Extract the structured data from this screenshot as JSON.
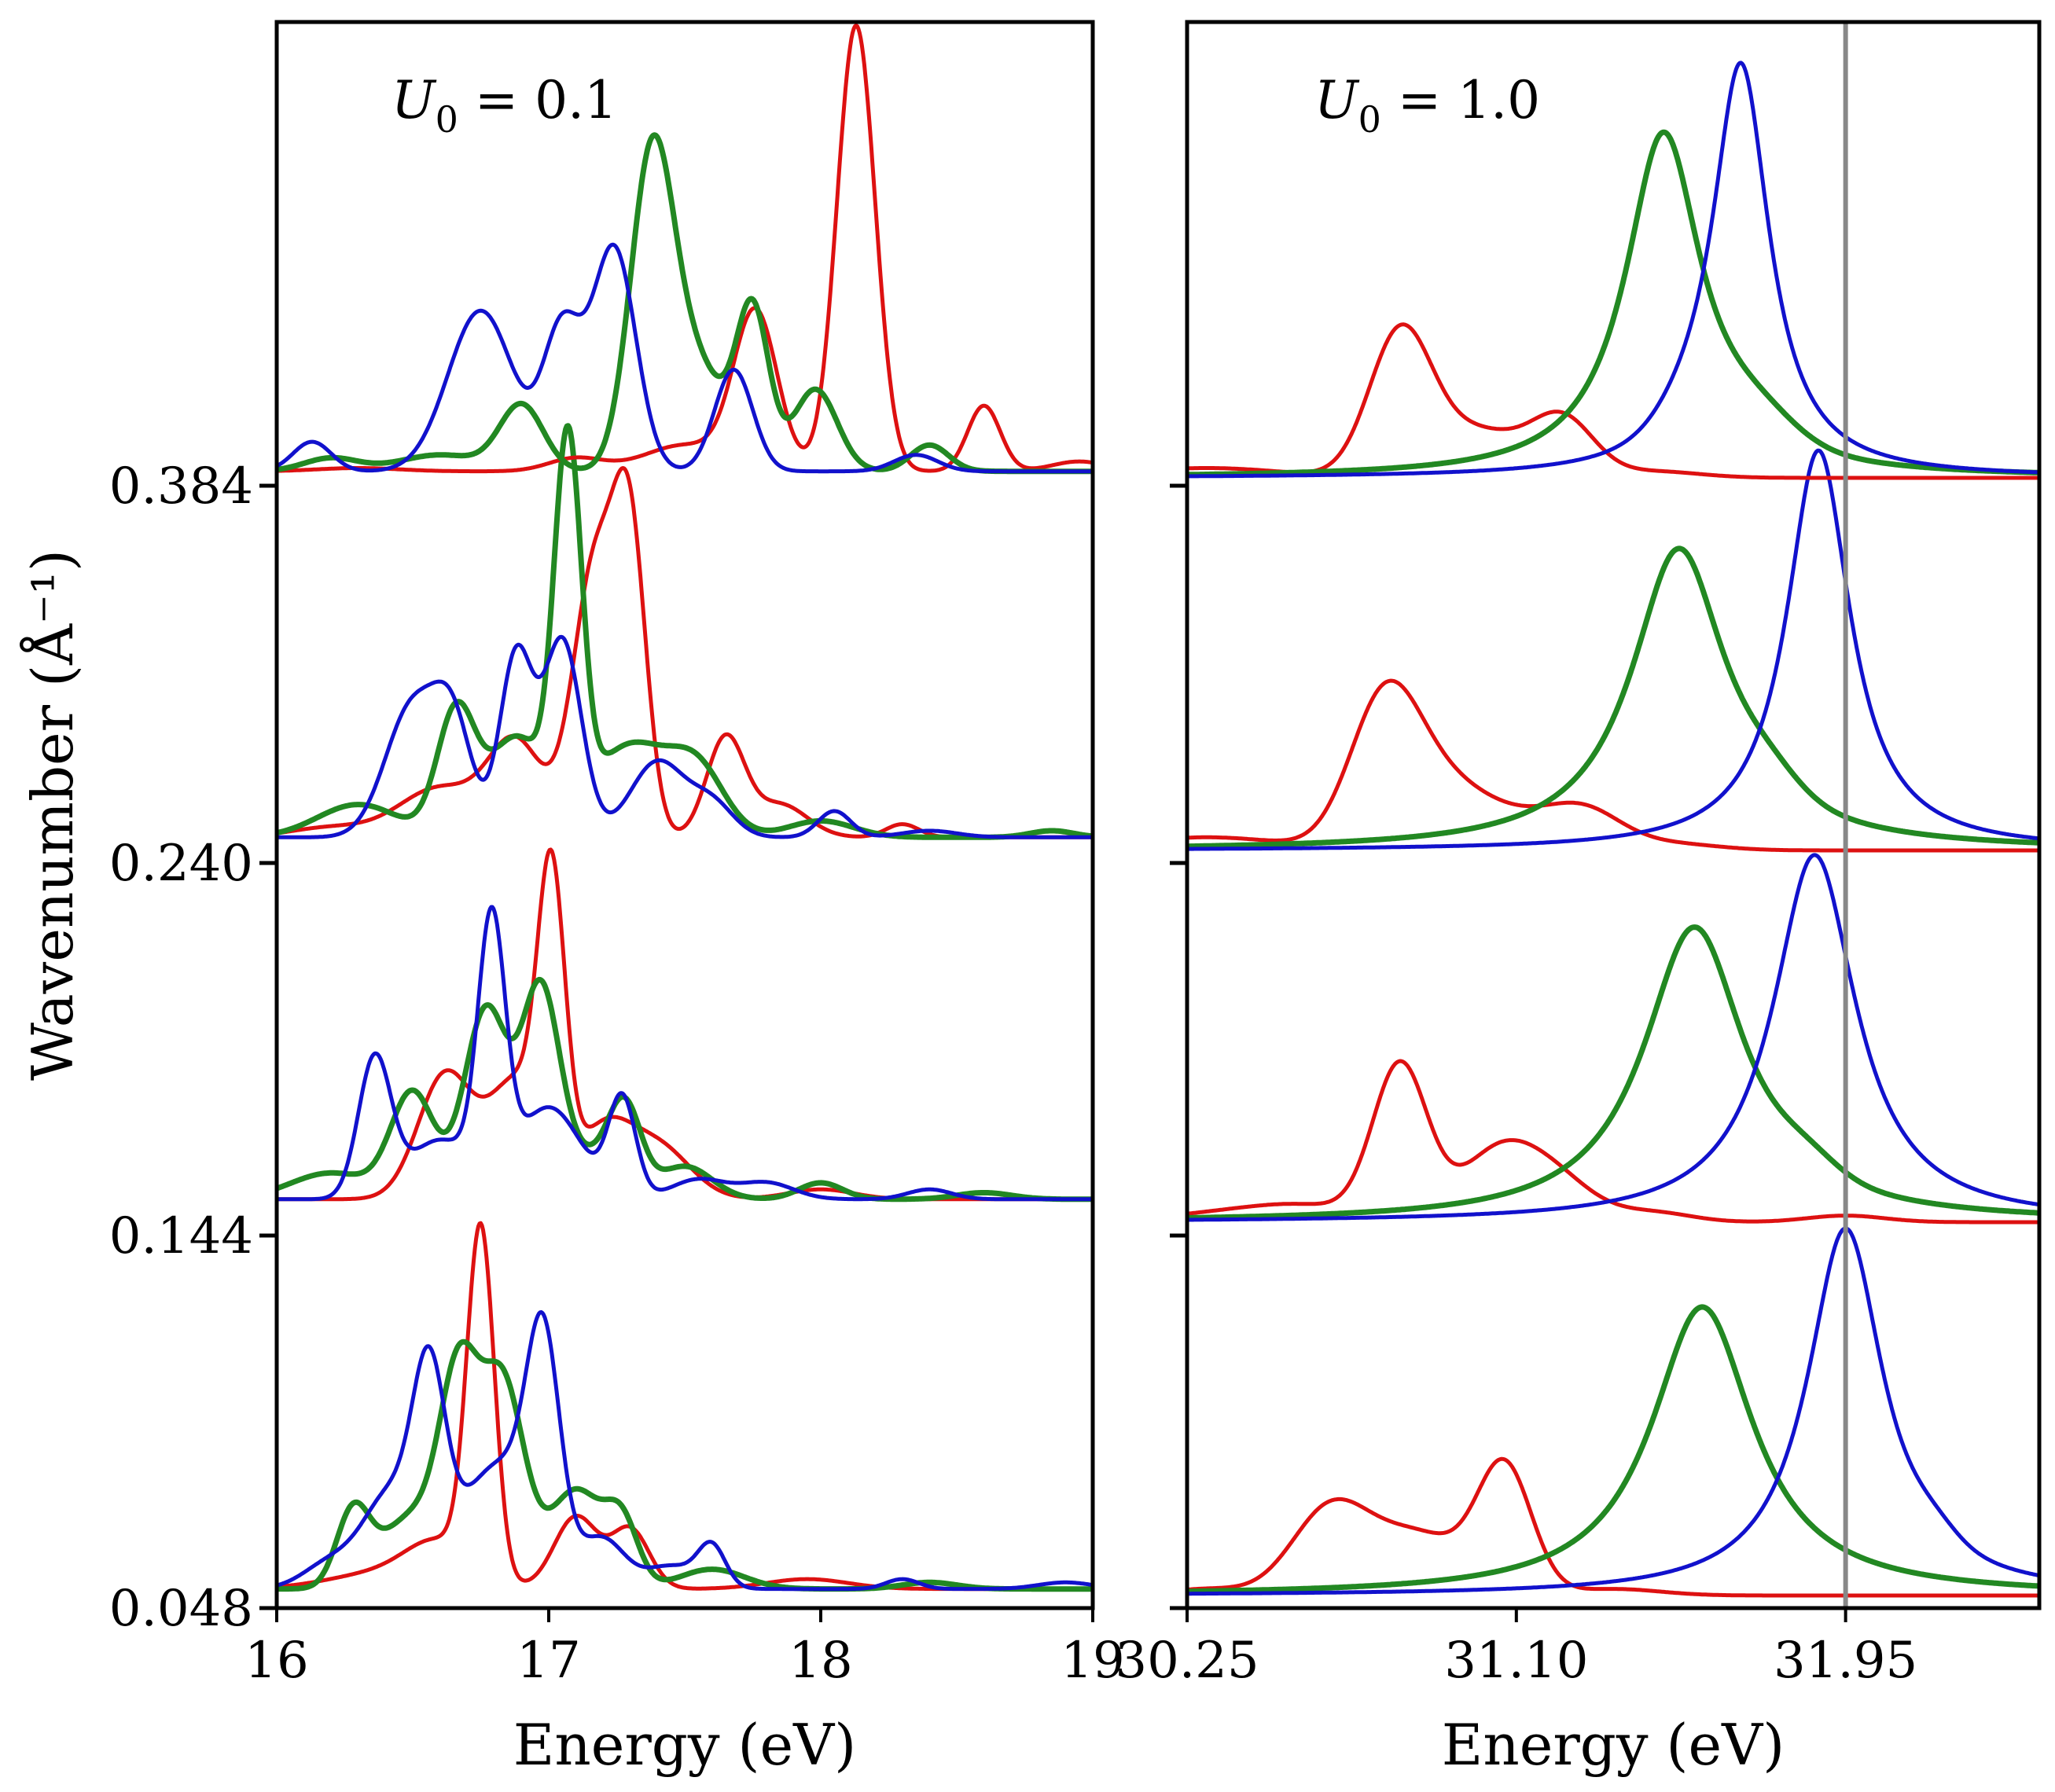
{
  "chart_data": [
    {
      "type": "line",
      "panel_label": "U0 = 0.1",
      "label_parts": {
        "symbol": "U",
        "subscript": "0",
        "rest": " = 0.1"
      },
      "xlabel": "Energy (eV)",
      "ylabel": "Wavenumber  (Å⁻¹)",
      "xlim": [
        16,
        19
      ],
      "xticks": [
        16,
        17,
        18,
        19
      ],
      "xtick_labels": [
        "16",
        "17",
        "18",
        "19"
      ],
      "yticks": [
        "0.048",
        "0.144",
        "0.240",
        "0.384"
      ],
      "offset_units": 1.0,
      "colors": {
        "red": "#dd1111",
        "green": "#228822",
        "blue": "#1111cc"
      },
      "rows": [
        {
          "wavenumber": "0.048",
          "baseline": 0.02,
          "series": [
            {
              "name": "red",
              "peaks": [
                [
                  16.4,
                  0.05,
                  0.2
                ],
                [
                  16.6,
                  0.12,
                  0.12
                ],
                [
                  16.75,
                  1.05,
                  0.05
                ],
                [
                  17.1,
                  0.22,
                  0.08
                ],
                [
                  17.3,
                  0.18,
                  0.07
                ],
                [
                  17.95,
                  0.03,
                  0.15
                ]
              ]
            },
            {
              "name": "green",
              "peaks": [
                [
                  16.28,
                  0.22,
                  0.06
                ],
                [
                  16.5,
                  0.22,
                  0.12
                ],
                [
                  16.67,
                  0.58,
                  0.07
                ],
                [
                  16.83,
                  0.62,
                  0.08
                ],
                [
                  17.1,
                  0.3,
                  0.1
                ],
                [
                  17.27,
                  0.18,
                  0.06
                ],
                [
                  17.6,
                  0.06,
                  0.12
                ],
                [
                  18.4,
                  0.02,
                  0.1
                ]
              ]
            },
            {
              "name": "blue",
              "peaks": [
                [
                  16.2,
                  0.08,
                  0.1
                ],
                [
                  16.42,
                  0.28,
                  0.1
                ],
                [
                  16.56,
                  0.55,
                  0.06
                ],
                [
                  16.82,
                  0.38,
                  0.15
                ],
                [
                  16.98,
                  0.62,
                  0.06
                ],
                [
                  17.2,
                  0.14,
                  0.08
                ],
                [
                  17.45,
                  0.07,
                  0.1
                ],
                [
                  17.6,
                  0.12,
                  0.05
                ],
                [
                  18.3,
                  0.03,
                  0.06
                ],
                [
                  18.9,
                  0.02,
                  0.1
                ]
              ]
            }
          ]
        },
        {
          "wavenumber": "0.144",
          "baseline": 0.07,
          "series": [
            {
              "name": "red",
              "peaks": [
                [
                  16.62,
                  0.38,
                  0.1
                ],
                [
                  16.88,
                  0.35,
                  0.1
                ],
                [
                  17.01,
                  0.88,
                  0.05
                ],
                [
                  17.2,
                  0.2,
                  0.1
                ],
                [
                  17.4,
                  0.16,
                  0.12
                ],
                [
                  18.0,
                  0.03,
                  0.12
                ]
              ]
            },
            {
              "name": "green",
              "peaks": [
                [
                  16.2,
                  0.08,
                  0.15
                ],
                [
                  16.5,
                  0.32,
                  0.08
                ],
                [
                  16.77,
                  0.58,
                  0.08
                ],
                [
                  16.97,
                  0.62,
                  0.07
                ],
                [
                  17.15,
                  0.12,
                  0.1
                ],
                [
                  17.28,
                  0.25,
                  0.06
                ],
                [
                  17.5,
                  0.1,
                  0.1
                ],
                [
                  18.0,
                  0.05,
                  0.08
                ],
                [
                  18.6,
                  0.02,
                  0.1
                ]
              ]
            },
            {
              "name": "blue",
              "peaks": [
                [
                  16.36,
                  0.42,
                  0.06
                ],
                [
                  16.6,
                  0.18,
                  0.12
                ],
                [
                  16.79,
                  0.78,
                  0.05
                ],
                [
                  17.0,
                  0.28,
                  0.12
                ],
                [
                  17.27,
                  0.3,
                  0.05
                ],
                [
                  17.55,
                  0.06,
                  0.1
                ],
                [
                  17.8,
                  0.05,
                  0.1
                ],
                [
                  18.4,
                  0.03,
                  0.08
                ]
              ]
            }
          ]
        },
        {
          "wavenumber": "0.240",
          "baseline": 0.04,
          "series": [
            {
              "name": "red",
              "peaks": [
                [
                  16.2,
                  0.03,
                  0.15
                ],
                [
                  16.6,
                  0.15,
                  0.15
                ],
                [
                  16.88,
                  0.28,
                  0.1
                ],
                [
                  17.17,
                  0.82,
                  0.08
                ],
                [
                  17.3,
                  0.85,
                  0.06
                ],
                [
                  17.65,
                  0.3,
                  0.07
                ],
                [
                  17.85,
                  0.1,
                  0.1
                ],
                [
                  18.3,
                  0.04,
                  0.06
                ]
              ]
            },
            {
              "name": "green",
              "peaks": [
                [
                  16.3,
                  0.1,
                  0.15
                ],
                [
                  16.66,
                  0.38,
                  0.07
                ],
                [
                  16.88,
                  0.3,
                  0.1
                ],
                [
                  17.07,
                  1.12,
                  0.05
                ],
                [
                  17.3,
                  0.28,
                  0.15
                ],
                [
                  17.55,
                  0.18,
                  0.1
                ],
                [
                  18.0,
                  0.05,
                  0.12
                ],
                [
                  18.85,
                  0.02,
                  0.08
                ]
              ]
            },
            {
              "name": "blue",
              "peaks": [
                [
                  16.5,
                  0.4,
                  0.1
                ],
                [
                  16.65,
                  0.3,
                  0.07
                ],
                [
                  16.88,
                  0.55,
                  0.06
                ],
                [
                  17.05,
                  0.6,
                  0.07
                ],
                [
                  17.4,
                  0.23,
                  0.1
                ],
                [
                  17.6,
                  0.1,
                  0.08
                ],
                [
                  18.05,
                  0.08,
                  0.06
                ],
                [
                  18.4,
                  0.02,
                  0.1
                ]
              ]
            }
          ]
        },
        {
          "wavenumber": "0.384",
          "baseline": 0.02,
          "series": [
            {
              "name": "red",
              "peaks": [
                [
                  16.3,
                  0.01,
                  0.15
                ],
                [
                  17.1,
                  0.04,
                  0.1
                ],
                [
                  17.5,
                  0.08,
                  0.15
                ],
                [
                  17.76,
                  0.48,
                  0.08
                ],
                [
                  18.13,
                  1.36,
                  0.07
                ],
                [
                  18.6,
                  0.2,
                  0.06
                ],
                [
                  18.95,
                  0.03,
                  0.1
                ]
              ]
            },
            {
              "name": "green",
              "peaks": [
                [
                  16.2,
                  0.04,
                  0.1
                ],
                [
                  16.6,
                  0.05,
                  0.15
                ],
                [
                  16.9,
                  0.2,
                  0.08
                ],
                [
                  17.38,
                  0.95,
                  0.08
                ],
                [
                  17.55,
                  0.3,
                  0.1
                ],
                [
                  17.75,
                  0.48,
                  0.06
                ],
                [
                  17.98,
                  0.25,
                  0.08
                ],
                [
                  18.4,
                  0.08,
                  0.07
                ]
              ]
            },
            {
              "name": "blue",
              "peaks": [
                [
                  16.13,
                  0.09,
                  0.07
                ],
                [
                  16.75,
                  0.49,
                  0.12
                ],
                [
                  17.05,
                  0.42,
                  0.07
                ],
                [
                  17.24,
                  0.68,
                  0.08
                ],
                [
                  17.68,
                  0.31,
                  0.07
                ],
                [
                  18.35,
                  0.05,
                  0.08
                ]
              ]
            }
          ]
        }
      ]
    },
    {
      "type": "line",
      "panel_label": "U0 = 1.0",
      "label_parts": {
        "symbol": "U",
        "subscript": "0",
        "rest": " = 1.0"
      },
      "xlabel": "Energy (eV)",
      "xlim": [
        30.25,
        32.45
      ],
      "xticks": [
        30.25,
        31.1,
        31.95
      ],
      "xtick_labels": [
        "30.25",
        "31.10",
        "31.95"
      ],
      "reference_line_energy": 31.95,
      "colors": {
        "red": "#dd1111",
        "green": "#228822",
        "blue": "#1111cc"
      },
      "rows": [
        {
          "wavenumber": "0.048",
          "series": [
            {
              "name": "red",
              "peaks": [
                [
                  30.3,
                  0.02,
                  0.1
                ],
                [
                  30.62,
                  0.26,
                  0.1
                ],
                [
                  30.85,
                  0.18,
                  0.12
                ],
                [
                  31.07,
                  0.38,
                  0.07
                ],
                [
                  31.35,
                  0.02,
                  0.12
                ]
              ]
            },
            {
              "name": "green",
              "lorentz": [
                31.58,
                0.88,
                0.16
              ]
            },
            {
              "name": "blue",
              "lorentz": [
                31.95,
                1.12,
                0.12
              ],
              "shoulder": [
                32.18,
                0.04,
                0.06
              ]
            }
          ]
        },
        {
          "wavenumber": "0.144",
          "series": [
            {
              "name": "red",
              "peaks": [
                [
                  30.3,
                  0.02,
                  0.15
                ],
                [
                  30.55,
                  0.05,
                  0.15
                ],
                [
                  30.8,
                  0.47,
                  0.07
                ],
                [
                  31.05,
                  0.2,
                  0.1
                ],
                [
                  31.2,
                  0.12,
                  0.1
                ],
                [
                  31.45,
                  0.03,
                  0.1
                ],
                [
                  31.95,
                  0.02,
                  0.1
                ]
              ]
            },
            {
              "name": "green",
              "lorentz": [
                31.56,
                0.9,
                0.16
              ],
              "shoulder": [
                31.85,
                0.05,
                0.08
              ]
            },
            {
              "name": "blue",
              "lorentz": [
                31.87,
                1.12,
                0.13
              ]
            }
          ]
        },
        {
          "wavenumber": "0.240",
          "series": [
            {
              "name": "red",
              "peaks": [
                [
                  30.3,
                  0.04,
                  0.2
                ],
                [
                  30.76,
                  0.45,
                  0.09
                ],
                [
                  30.9,
                  0.14,
                  0.1
                ],
                [
                  31.05,
                  0.1,
                  0.12
                ],
                [
                  31.27,
                  0.12,
                  0.1
                ],
                [
                  31.5,
                  0.02,
                  0.12
                ]
              ]
            },
            {
              "name": "green",
              "lorentz": [
                31.52,
                0.92,
                0.15
              ],
              "shoulder": [
                31.75,
                0.06,
                0.08
              ]
            },
            {
              "name": "blue",
              "lorentz": [
                31.88,
                1.22,
                0.1
              ]
            }
          ]
        },
        {
          "wavenumber": "0.384",
          "series": [
            {
              "name": "red",
              "peaks": [
                [
                  30.3,
                  0.03,
                  0.2
                ],
                [
                  30.8,
                  0.43,
                  0.08
                ],
                [
                  31.0,
                  0.14,
                  0.12
                ],
                [
                  31.22,
                  0.17,
                  0.08
                ],
                [
                  31.45,
                  0.02,
                  0.12
                ]
              ]
            },
            {
              "name": "green",
              "lorentz": [
                31.48,
                1.05,
                0.12
              ],
              "shoulder": [
                31.72,
                0.08,
                0.1
              ]
            },
            {
              "name": "blue",
              "lorentz": [
                31.68,
                1.25,
                0.09
              ],
              "shoulder": [
                31.55,
                0.06,
                0.08
              ]
            }
          ]
        }
      ]
    }
  ]
}
